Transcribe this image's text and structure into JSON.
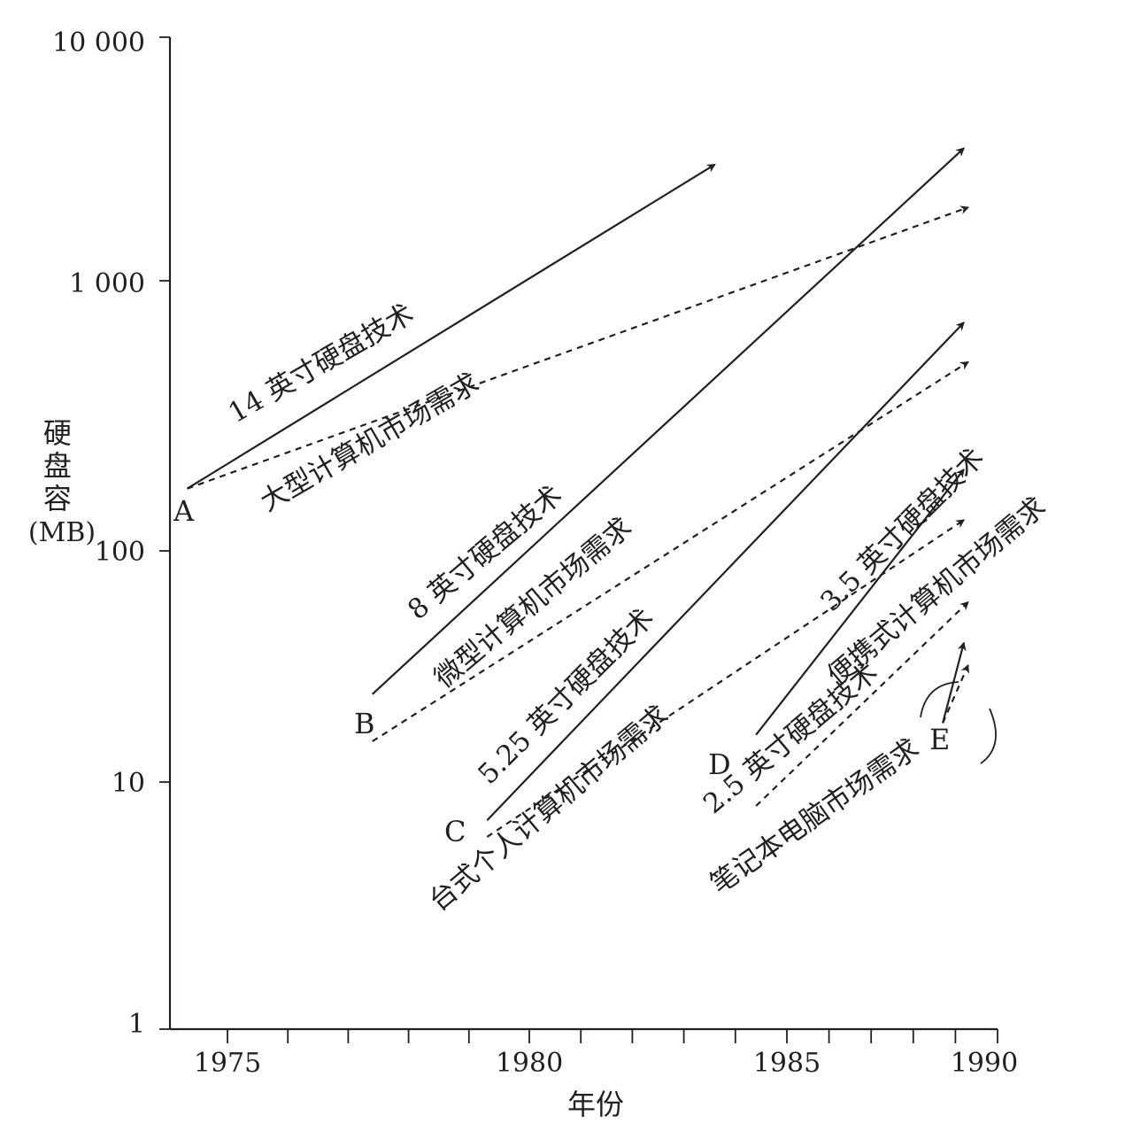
{
  "chart_data": {
    "type": "line",
    "title": "",
    "xlabel": "年份",
    "ylabel": "硬盘容(MB)",
    "y_scale": "log",
    "xlim": [
      1974,
      1990
    ],
    "ylim": [
      1,
      10000
    ],
    "grid": false,
    "legend": "none",
    "x_ticks": [
      1975,
      1980,
      1985,
      1990
    ],
    "y_ticks": [
      1,
      10,
      100,
      1000,
      10000
    ],
    "y_tick_labels": [
      "1",
      "10",
      "100",
      "1 000",
      "10 000"
    ],
    "line_styles": {
      "technology": "solid",
      "demand": "dashed"
    },
    "colors": {
      "ink": "#231f20"
    },
    "series": [
      {
        "name": "14 英寸硬盘技术",
        "style": "solid",
        "x": [
          1974.3,
          1983.6
        ],
        "y": [
          170,
          3000
        ]
      },
      {
        "name": "大型计算机市场需求",
        "style": "dashed",
        "x": [
          1974.3,
          1989.3
        ],
        "y": [
          170,
          2000
        ]
      },
      {
        "name": "8 英寸硬盘技术",
        "style": "solid",
        "x": [
          1977.4,
          1989.2
        ],
        "y": [
          24,
          3500
        ]
      },
      {
        "name": "微型计算机市场需求",
        "style": "dashed",
        "x": [
          1977.4,
          1989.3
        ],
        "y": [
          15,
          500
        ]
      },
      {
        "name": "5.25 英寸硬盘技术",
        "style": "solid",
        "x": [
          1979.3,
          1989.2
        ],
        "y": [
          7,
          700
        ]
      },
      {
        "name": "台式个人计算机市场需求",
        "style": "dashed",
        "x": [
          1979.3,
          1989.2
        ],
        "y": [
          6,
          130
        ]
      },
      {
        "name": "3.5 英寸硬盘技术",
        "style": "solid",
        "x": [
          1984.4,
          1989.2
        ],
        "y": [
          16,
          200
        ]
      },
      {
        "name": "便携式计算机市场需求",
        "style": "dashed",
        "x": [
          1984.4,
          1989.3
        ],
        "y": [
          8,
          60
        ]
      },
      {
        "name": "2.5 英寸硬盘技术",
        "style": "solid",
        "x": [
          1988.7,
          1989.2
        ],
        "y": [
          18,
          40
        ]
      },
      {
        "name": "笔记本电脑市场需求",
        "style": "dashed",
        "x": [
          1988.7,
          1989.3
        ],
        "y": [
          18,
          32
        ]
      }
    ],
    "points": [
      "A",
      "B",
      "C",
      "D",
      "E"
    ]
  }
}
